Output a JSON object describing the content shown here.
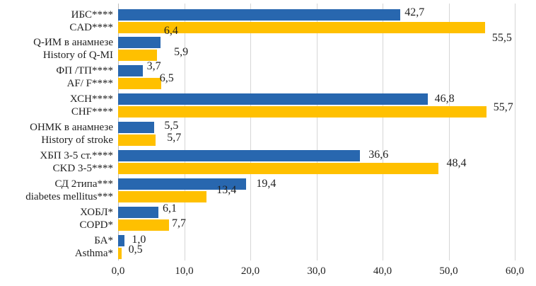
{
  "chart_data": {
    "type": "bar",
    "orientation": "horizontal",
    "title": "",
    "xlabel": "",
    "ylabel": "",
    "xlim": [
      0,
      60
    ],
    "grid": "vertical",
    "legend_position": "none",
    "x_ticks": [
      "0,0",
      "10,0",
      "20,0",
      "30,0",
      "40,0",
      "50,0",
      "60,0"
    ],
    "categories": [
      {
        "line1": "ИБС****",
        "line2": "CAD****"
      },
      {
        "line1": "Q-ИМ в анамнезе",
        "line2": "History of Q-MI"
      },
      {
        "line1": "ФП /ТП****",
        "line2": "AF/ F****"
      },
      {
        "line1": "ХСН****",
        "line2": "CHF****"
      },
      {
        "line1": "ОНМК в анамнезе",
        "line2": "History of stroke"
      },
      {
        "line1": "ХБП 3-5 ст.****",
        "line2": "CKD 3-5****"
      },
      {
        "line1": "СД 2типа***",
        "line2": "diabetes mellitus***"
      },
      {
        "line1": "ХОБЛ*",
        "line2": "COPD*"
      },
      {
        "line1": "БА*",
        "line2": "Asthma*"
      }
    ],
    "series": [
      {
        "name": "series_blue",
        "color": "#2867AF",
        "values": [
          42.7,
          6.4,
          3.7,
          46.8,
          5.5,
          36.6,
          19.4,
          6.1,
          1.0
        ],
        "labels": [
          "42,7",
          "6,4",
          "3,7",
          "46,8",
          "5,5",
          "36,6",
          "19,4",
          "6,1",
          "1,0"
        ],
        "label_dx": [
          6,
          5,
          6,
          10,
          14,
          12,
          14,
          6,
          10
        ],
        "label_dy": [
          -3,
          -16,
          -6,
          0,
          -2,
          -1,
          0,
          -5,
          -1
        ]
      },
      {
        "name": "series_yellow",
        "color": "#FFC000",
        "values": [
          55.5,
          5.9,
          6.5,
          55.7,
          5.7,
          48.4,
          13.4,
          7.7,
          0.5
        ],
        "labels": [
          "55,5",
          "5,9",
          "6,5",
          "55,7",
          "5,7",
          "48,4",
          "13,4",
          "7,7",
          "0,5"
        ],
        "label_dx": [
          10,
          24,
          -2,
          10,
          16,
          12,
          14,
          4,
          10
        ],
        "label_dy": [
          15,
          -4,
          -7,
          -6,
          -3,
          -7,
          -9,
          -2,
          -5
        ]
      }
    ]
  },
  "colors": {
    "series_blue": "#2867AF",
    "series_yellow": "#FFC000",
    "gridline": "#d6d6d6",
    "text": "#1f1f1f",
    "background": "#ffffff"
  }
}
